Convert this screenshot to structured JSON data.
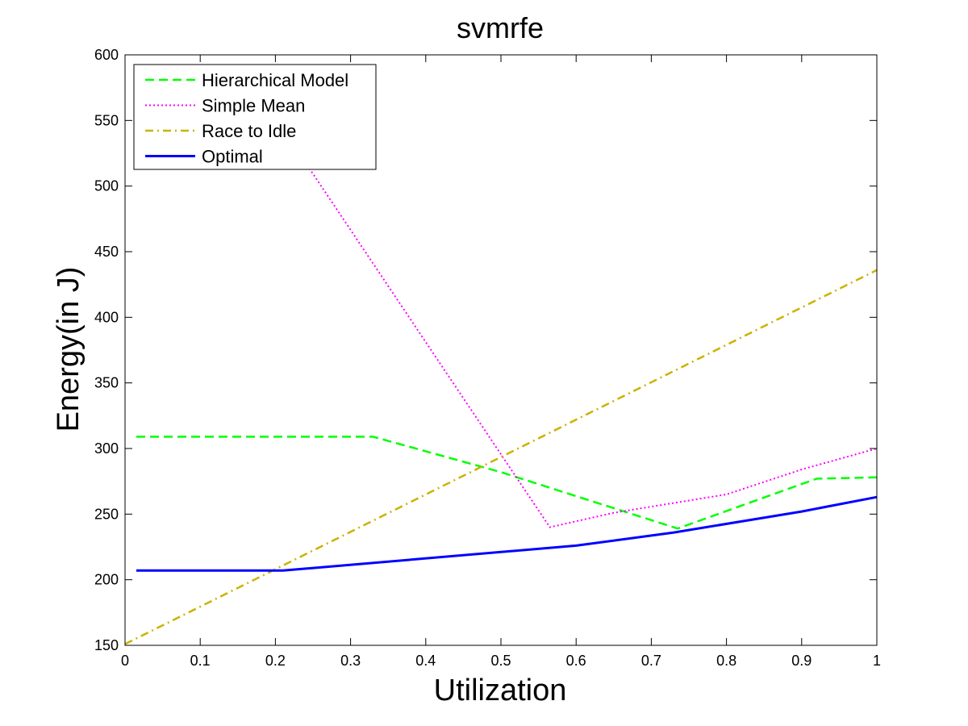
{
  "chart_data": {
    "type": "line",
    "title": "svmrfe",
    "xlabel": "Utilization",
    "ylabel": "Energy(in J)",
    "xlim": [
      0,
      1
    ],
    "ylim": [
      150,
      600
    ],
    "xticks": [
      0,
      0.1,
      0.2,
      0.3,
      0.4,
      0.5,
      0.6,
      0.7,
      0.8,
      0.9,
      1
    ],
    "xtick_labels": [
      "0",
      "0.1",
      "0.2",
      "0.3",
      "0.4",
      "0.5",
      "0.6",
      "0.7",
      "0.8",
      "0.9",
      "1"
    ],
    "yticks": [
      150,
      200,
      250,
      300,
      350,
      400,
      450,
      500,
      550,
      600
    ],
    "ytick_labels": [
      "150",
      "200",
      "250",
      "300",
      "350",
      "400",
      "450",
      "500",
      "550",
      "600"
    ],
    "grid": false,
    "legend_position": "top-left",
    "series": [
      {
        "name": "Hierarchical Model",
        "color": "#00ff00",
        "style": "dashed",
        "x": [
          0.015,
          0.33,
          0.5,
          0.735,
          0.92,
          1.0
        ],
        "y": [
          309,
          309,
          282,
          239,
          277,
          278
        ]
      },
      {
        "name": "Simple Mean",
        "color": "#ff00ff",
        "style": "dotted",
        "x": [
          0.015,
          0.22,
          0.565,
          0.65,
          0.8,
          0.9,
          1.0
        ],
        "y": [
          567,
          535,
          240,
          251,
          265,
          284,
          300
        ]
      },
      {
        "name": "Race to Idle",
        "color": "#c8b400",
        "style": "dashdot",
        "x": [
          0.0,
          1.0
        ],
        "y": [
          151,
          436
        ]
      },
      {
        "name": "Optimal",
        "color": "#0000ff",
        "style": "solid",
        "x": [
          0.015,
          0.21,
          0.6,
          0.73,
          0.9,
          1.0
        ],
        "y": [
          207,
          207,
          226,
          236,
          252,
          263
        ]
      }
    ]
  }
}
